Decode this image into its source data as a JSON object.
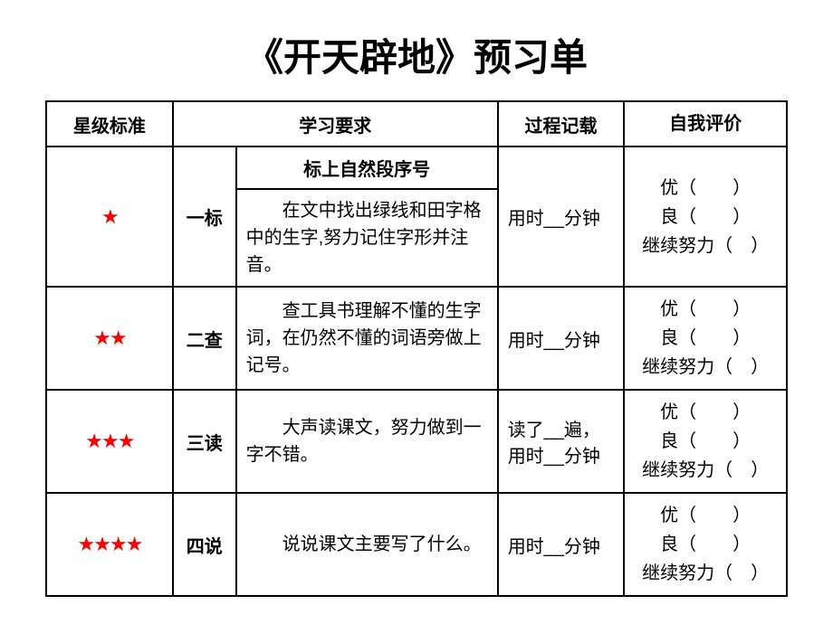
{
  "title": "《开天辟地》预习单",
  "headers": {
    "stars": "星级标准",
    "requirement": "学习要求",
    "process": "过程记载",
    "evaluation": "自我评价"
  },
  "stars": {
    "one": "★",
    "two": "★★",
    "three": "★★★",
    "four": "★★★★"
  },
  "steps": {
    "s1": "一标",
    "s2": "二查",
    "s3": "三读",
    "s4": "四说"
  },
  "requirements": {
    "r1a": "标上自然段序号",
    "r1b": "在文中找出绿线和田字格中的生字,努力记住字形并注音。",
    "r2": "查工具书理解不懂的生字词，在仍然不懂的词语旁做上记号。",
    "r3": "大声读课文，努力做到一字不错。",
    "r4": "说说课文主要写了什么。"
  },
  "process": {
    "p1": "用时__分钟",
    "p2": "用时__分钟",
    "p3": "读了__遍，用时__分钟",
    "p4": "用时__分钟"
  },
  "eval_lines": {
    "l1": "优（　　）",
    "l2": "良（　　）",
    "l3": "继续努力（　）"
  }
}
